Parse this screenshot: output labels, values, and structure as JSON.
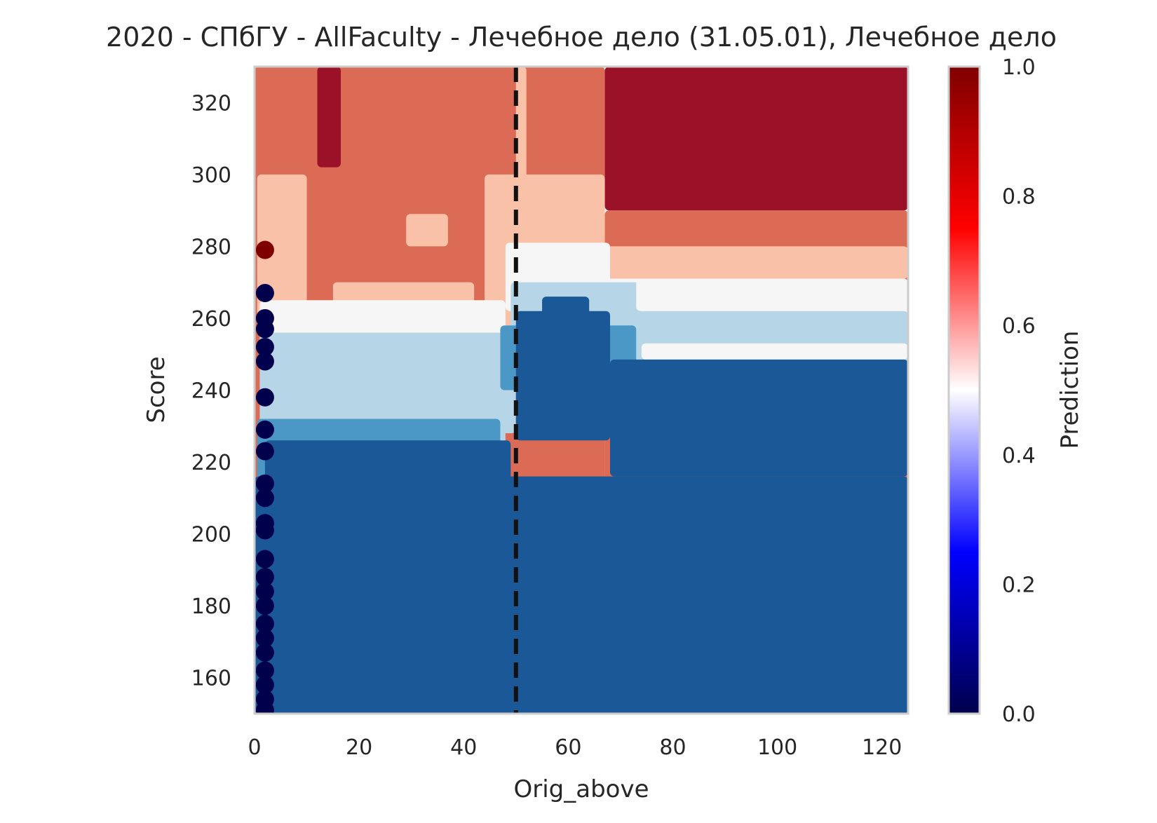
{
  "chart_data": {
    "type": "heatmap",
    "title": "2020 - СПбГУ - AllFaculty - Лечебное дело (31.05.01), Лечебное дело",
    "xlabel": "Orig_above",
    "ylabel": "Score",
    "xlim": [
      0,
      125
    ],
    "ylim": [
      150,
      330
    ],
    "xticks": [
      0,
      20,
      40,
      60,
      80,
      100,
      120
    ],
    "yticks": [
      160,
      180,
      200,
      220,
      240,
      260,
      280,
      300,
      320
    ],
    "grid": false,
    "threshold_line": {
      "x": 50,
      "style": "dashed",
      "color": "#111111"
    },
    "contour_levels": [
      {
        "min": 0.0,
        "max": 0.2,
        "color": "#1b5897"
      },
      {
        "min": 0.2,
        "max": 0.3,
        "color": "#4b98c6"
      },
      {
        "min": 0.3,
        "max": 0.5,
        "color": "#b6d5e7"
      },
      {
        "min": 0.5,
        "max": 0.6,
        "color": "#f6f6f6"
      },
      {
        "min": 0.6,
        "max": 0.7,
        "color": "#f9c2a8"
      },
      {
        "min": 0.7,
        "max": 0.9,
        "color": "#dc6b56"
      },
      {
        "min": 0.9,
        "max": 1.0,
        "color": "#9b1128"
      }
    ],
    "regions": [
      {
        "level": 5,
        "x0": 0,
        "x1": 67,
        "y0": 150,
        "y1": 330
      },
      {
        "level": 5,
        "x0": 67,
        "x1": 125,
        "y0": 150,
        "y1": 290
      },
      {
        "level": 6,
        "x0": 67,
        "x1": 125,
        "y0": 290,
        "y1": 330
      },
      {
        "level": 6,
        "x0": 12,
        "x1": 16.5,
        "y0": 302,
        "y1": 330
      },
      {
        "level": 4,
        "x0": 0.5,
        "x1": 10,
        "y0": 255,
        "y1": 300
      },
      {
        "level": 4,
        "x0": 15,
        "x1": 42,
        "y0": 253,
        "y1": 270
      },
      {
        "level": 4,
        "x0": 44,
        "x1": 67,
        "y0": 255,
        "y1": 300
      },
      {
        "level": 4,
        "x0": 67,
        "x1": 125,
        "y0": 271,
        "y1": 280
      },
      {
        "level": 4,
        "x0": 29,
        "x1": 37,
        "y0": 280,
        "y1": 289
      },
      {
        "level": 4,
        "x0": 50,
        "x1": 52,
        "y0": 295,
        "y1": 330
      },
      {
        "level": 3,
        "x0": 1,
        "x1": 48,
        "y0": 236,
        "y1": 265
      },
      {
        "level": 3,
        "x0": 48,
        "x1": 68,
        "y0": 262,
        "y1": 281
      },
      {
        "level": 3,
        "x0": 67,
        "x1": 125,
        "y0": 253,
        "y1": 271
      },
      {
        "level": 2,
        "x0": 1,
        "x1": 50,
        "y0": 228,
        "y1": 256
      },
      {
        "level": 2,
        "x0": 49,
        "x1": 74,
        "y0": 248,
        "y1": 270
      },
      {
        "level": 2,
        "x0": 73,
        "x1": 125,
        "y0": 248,
        "y1": 262
      },
      {
        "level": 3,
        "x0": 73,
        "x1": 125,
        "y0": 262,
        "y1": 271
      },
      {
        "level": 3,
        "x0": 74,
        "x1": 125,
        "y0": 248.5,
        "y1": 253
      },
      {
        "level": 2,
        "x0": 1,
        "x1": 48,
        "y0": 218,
        "y1": 236
      },
      {
        "level": 1,
        "x0": 0.5,
        "x1": 47,
        "y0": 214,
        "y1": 232
      },
      {
        "level": 1,
        "x0": 47,
        "x1": 73,
        "y0": 240,
        "y1": 258
      },
      {
        "level": 0,
        "x0": 0,
        "x1": 125,
        "y0": 150,
        "y1": 216
      },
      {
        "level": 0,
        "x0": 2,
        "x1": 49,
        "y0": 215,
        "y1": 226
      },
      {
        "level": 0,
        "x0": 50,
        "x1": 68,
        "y0": 226,
        "y1": 262
      },
      {
        "level": 0,
        "x0": 68,
        "x1": 125,
        "y0": 216,
        "y1": 248.5
      },
      {
        "level": 0,
        "x0": 55,
        "x1": 64,
        "y0": 258,
        "y1": 266
      }
    ],
    "points": [
      {
        "x": 2,
        "y": 279,
        "value": 1.0
      },
      {
        "x": 2,
        "y": 267,
        "value": 0.0
      },
      {
        "x": 2,
        "y": 260,
        "value": 0.0
      },
      {
        "x": 2,
        "y": 257,
        "value": 0.0
      },
      {
        "x": 2,
        "y": 252,
        "value": 0.0
      },
      {
        "x": 2,
        "y": 248,
        "value": 0.0
      },
      {
        "x": 2,
        "y": 238,
        "value": 0.0
      },
      {
        "x": 2,
        "y": 229,
        "value": 0.0
      },
      {
        "x": 2,
        "y": 223,
        "value": 0.0
      },
      {
        "x": 2,
        "y": 214,
        "value": 0.0
      },
      {
        "x": 2,
        "y": 210,
        "value": 0.0
      },
      {
        "x": 2,
        "y": 203,
        "value": 0.0
      },
      {
        "x": 2,
        "y": 201,
        "value": 0.0
      },
      {
        "x": 2,
        "y": 193,
        "value": 0.0
      },
      {
        "x": 2,
        "y": 188,
        "value": 0.0
      },
      {
        "x": 2,
        "y": 184,
        "value": 0.0
      },
      {
        "x": 2,
        "y": 180,
        "value": 0.0
      },
      {
        "x": 2,
        "y": 175,
        "value": 0.0
      },
      {
        "x": 2,
        "y": 171,
        "value": 0.0
      },
      {
        "x": 2,
        "y": 167,
        "value": 0.0
      },
      {
        "x": 2,
        "y": 162,
        "value": 0.0
      },
      {
        "x": 2,
        "y": 158,
        "value": 0.0
      },
      {
        "x": 2,
        "y": 154,
        "value": 0.0
      },
      {
        "x": 2,
        "y": 151,
        "value": 0.0
      }
    ],
    "colorbar": {
      "label": "Prediction",
      "range": [
        0,
        1
      ],
      "ticks": [
        "0.0",
        "0.2",
        "0.4",
        "0.6",
        "0.8",
        "1.0"
      ],
      "colormap": [
        "#00004c",
        "#0000ff",
        "#ffffff",
        "#ff0000",
        "#800000"
      ]
    }
  }
}
